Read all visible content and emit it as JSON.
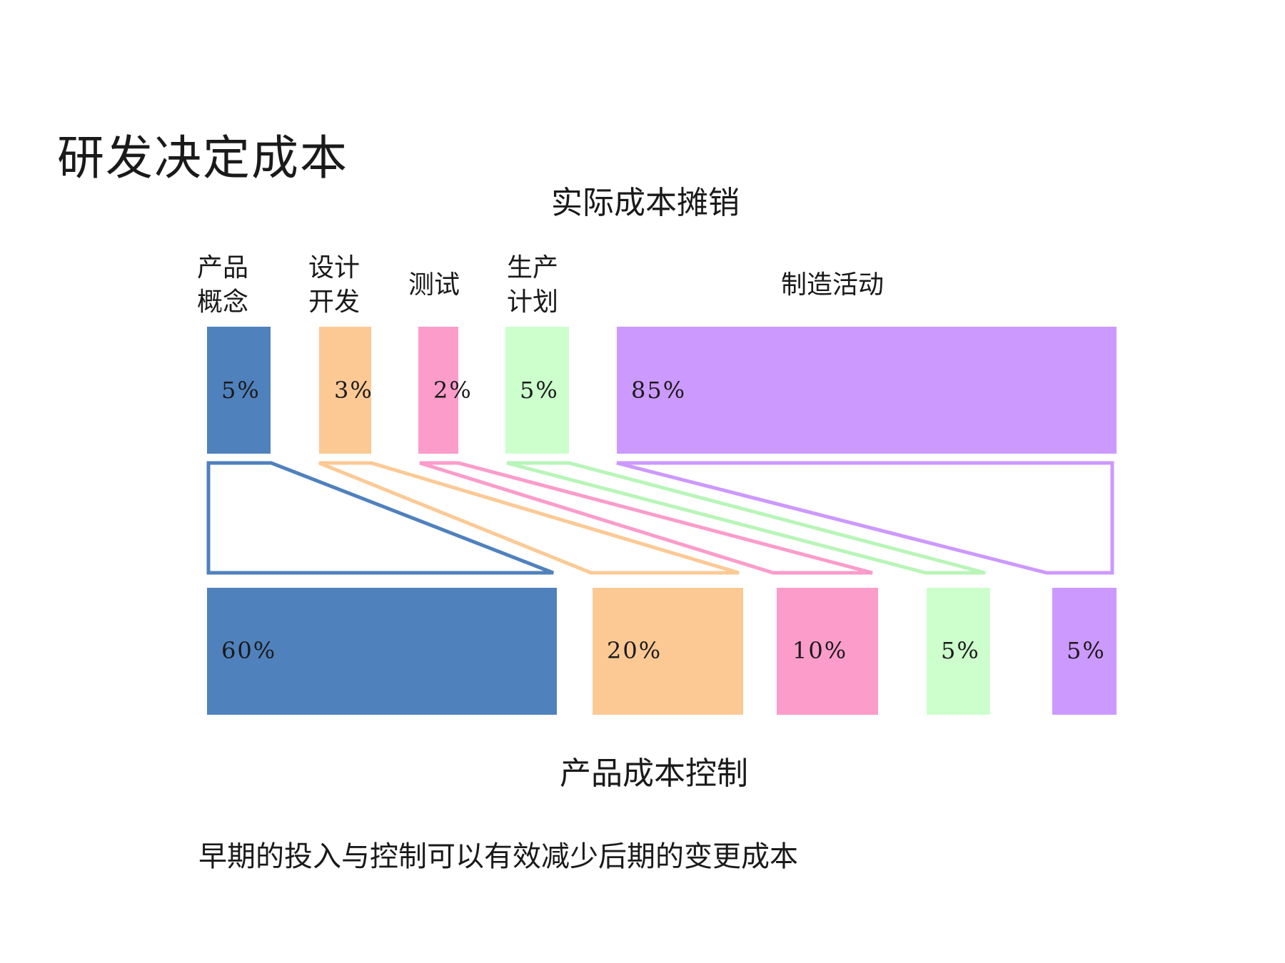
{
  "title": "研发决定成本",
  "top_heading": "实际成本摊销",
  "bottom_heading": "产品成本控制",
  "note": "早期的投入与控制可以有效减少后期的变更成本",
  "stages": [
    {
      "label_lines": [
        "产品",
        "概念"
      ],
      "actual_cost": "5%",
      "controlled_cost": "60%",
      "color": "#4f81bd"
    },
    {
      "label_lines": [
        "设计",
        "开发"
      ],
      "actual_cost": "3%",
      "controlled_cost": "20%",
      "color": "#fcc995"
    },
    {
      "label_lines": [
        "测试"
      ],
      "actual_cost": "2%",
      "controlled_cost": "10%",
      "color": "#fb9ccb"
    },
    {
      "label_lines": [
        "生产",
        "计划"
      ],
      "actual_cost": "5%",
      "controlled_cost": "5%",
      "color": "#ccffcc"
    },
    {
      "label_lines": [
        "制造活动"
      ],
      "actual_cost": "85%",
      "controlled_cost": "5%",
      "color": "#cc99ff"
    }
  ]
}
